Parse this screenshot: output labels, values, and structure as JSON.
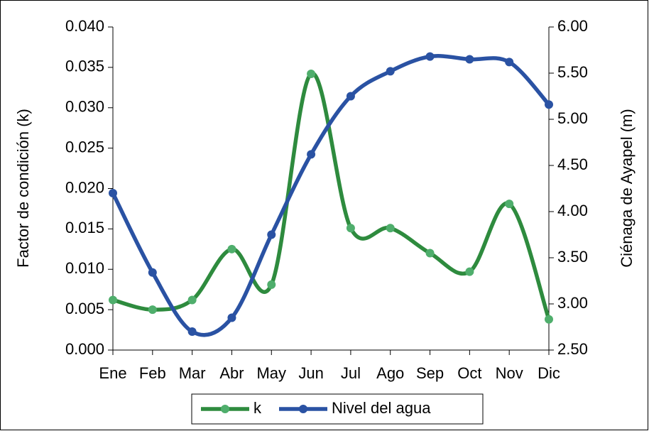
{
  "chart_data": {
    "type": "line",
    "y_label": "Factor de condición (k)",
    "y2_label": "Ciénaga de Ayapel (m)",
    "categories": [
      "Ene",
      "Feb",
      "Mar",
      "Abr",
      "May",
      "Jun",
      "Jul",
      "Ago",
      "Sep",
      "Oct",
      "Nov",
      "Dic"
    ],
    "series": [
      {
        "name": "k",
        "color": "#2e8b3e",
        "marker_color": "#4fae6c",
        "axis": "y",
        "values": [
          0.0062,
          0.005,
          0.0062,
          0.0125,
          0.0081,
          0.0342,
          0.0151,
          0.0151,
          0.012,
          0.0097,
          0.0181,
          0.0038
        ]
      },
      {
        "name": "Nivel del agua",
        "color": "#2a52a3",
        "marker_color": "#2a52a3",
        "axis": "y2",
        "values": [
          4.2,
          3.34,
          2.7,
          2.85,
          3.75,
          4.62,
          5.25,
          5.52,
          5.68,
          5.65,
          5.62,
          5.16
        ]
      }
    ],
    "ylim": [
      0,
      0.04
    ],
    "yticks": [
      {
        "value": 0,
        "label": "0.000"
      },
      {
        "value": 0.005,
        "label": "0.005"
      },
      {
        "value": 0.01,
        "label": "0.010"
      },
      {
        "value": 0.015,
        "label": "0.015"
      },
      {
        "value": 0.02,
        "label": "0.020"
      },
      {
        "value": 0.025,
        "label": "0.025"
      },
      {
        "value": 0.03,
        "label": "0.030"
      },
      {
        "value": 0.035,
        "label": "0.035"
      },
      {
        "value": 0.04,
        "label": "0.040"
      }
    ],
    "y2lim": [
      2.5,
      6
    ],
    "y2ticks": [
      {
        "value": 2.5,
        "label": "2.50"
      },
      {
        "value": 3,
        "label": "3.00"
      },
      {
        "value": 3.5,
        "label": "3.50"
      },
      {
        "value": 4,
        "label": "4.00"
      },
      {
        "value": 4.5,
        "label": "4.50"
      },
      {
        "value": 5,
        "label": "5.00"
      },
      {
        "value": 5.5,
        "label": "5.50"
      },
      {
        "value": 6,
        "label": "6.00"
      }
    ],
    "grid": false,
    "smooth": true,
    "legend": "bottom"
  }
}
